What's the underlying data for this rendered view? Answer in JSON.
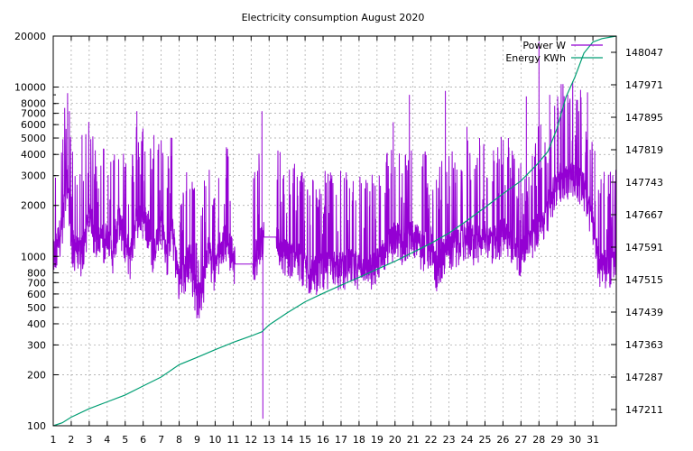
{
  "chart_data": {
    "type": "line",
    "title": "Electricity consumption August 2020",
    "xlabel": "",
    "ylabel": "",
    "y2label": "",
    "grid": true,
    "legend_position": "top-right",
    "x_ticks": [
      "1",
      "2",
      "3",
      "4",
      "5",
      "6",
      "7",
      "8",
      "9",
      "10",
      "11",
      "12",
      "13",
      "14",
      "15",
      "16",
      "17",
      "18",
      "19",
      "20",
      "21",
      "22",
      "23",
      "24",
      "25",
      "26",
      "27",
      "28",
      "29",
      "30",
      "31"
    ],
    "xlim": [
      1,
      32.3
    ],
    "y_scale": "log",
    "ylim": [
      100,
      20000
    ],
    "y_ticks": [
      100,
      200,
      300,
      400,
      500,
      600,
      700,
      800,
      1000,
      2000,
      3000,
      4000,
      5000,
      6000,
      7000,
      8000,
      10000,
      20000
    ],
    "y2lim": [
      147173,
      148085
    ],
    "y2_ticks": [
      147211,
      147287,
      147363,
      147439,
      147515,
      147591,
      147667,
      147743,
      147819,
      147895,
      147971,
      148047
    ],
    "colors": {
      "power": "#9400d3",
      "energy": "#009e73",
      "grid": "#a0a0a0"
    },
    "series": [
      {
        "name": "Power W",
        "axis": "y",
        "profile": [
          [
            1.0,
            1000
          ],
          [
            1.5,
            1500
          ],
          [
            1.8,
            3000
          ],
          [
            2.0,
            1200
          ],
          [
            2.5,
            1000
          ],
          [
            3.0,
            1700
          ],
          [
            3.5,
            1200
          ],
          [
            4.0,
            1300
          ],
          [
            4.3,
            1000
          ],
          [
            4.6,
            1700
          ],
          [
            5.0,
            1200
          ],
          [
            5.3,
            1000
          ],
          [
            5.6,
            1600
          ],
          [
            6.0,
            1700
          ],
          [
            6.3,
            1500
          ],
          [
            6.6,
            1000
          ],
          [
            7.0,
            1600
          ],
          [
            7.3,
            1000
          ],
          [
            7.6,
            1500
          ],
          [
            8.0,
            700
          ],
          [
            8.3,
            800
          ],
          [
            8.6,
            1000
          ],
          [
            9.0,
            550
          ],
          [
            9.3,
            650
          ],
          [
            9.6,
            1100
          ],
          [
            10.0,
            800
          ],
          [
            10.3,
            1200
          ],
          [
            10.6,
            1300
          ],
          [
            11.0,
            1000
          ],
          [
            11.1,
            900
          ],
          [
            12.1,
            900
          ],
          [
            12.5,
            1200
          ],
          [
            12.6,
            1300
          ],
          [
            13.4,
            1300
          ],
          [
            13.6,
            1100
          ],
          [
            14.0,
            1000
          ],
          [
            14.5,
            1000
          ],
          [
            15.0,
            850
          ],
          [
            15.5,
            800
          ],
          [
            16.0,
            850
          ],
          [
            16.5,
            900
          ],
          [
            17.0,
            850
          ],
          [
            17.5,
            900
          ],
          [
            18.0,
            850
          ],
          [
            18.5,
            800
          ],
          [
            19.0,
            900
          ],
          [
            19.5,
            1100
          ],
          [
            20.0,
            1300
          ],
          [
            20.5,
            1200
          ],
          [
            21.0,
            1400
          ],
          [
            21.5,
            1100
          ],
          [
            22.0,
            1200
          ],
          [
            22.3,
            800
          ],
          [
            22.6,
            1000
          ],
          [
            23.0,
            1100
          ],
          [
            23.5,
            1200
          ],
          [
            24.0,
            1300
          ],
          [
            24.5,
            1200
          ],
          [
            25.0,
            1300
          ],
          [
            25.5,
            1200
          ],
          [
            26.0,
            1400
          ],
          [
            26.5,
            1200
          ],
          [
            27.0,
            1000
          ],
          [
            27.5,
            1200
          ],
          [
            28.0,
            1600
          ],
          [
            28.5,
            1900
          ],
          [
            29.0,
            2800
          ],
          [
            29.5,
            3000
          ],
          [
            30.0,
            3000
          ],
          [
            30.5,
            2500
          ],
          [
            31.0,
            1500
          ],
          [
            31.3,
            900
          ],
          [
            31.6,
            900
          ],
          [
            32.0,
            900
          ],
          [
            32.3,
            850
          ]
        ],
        "spikes": [
          [
            1.8,
            9200
          ],
          [
            1.9,
            7200
          ],
          [
            2.6,
            5200
          ],
          [
            3.4,
            3400
          ],
          [
            4.4,
            4000
          ],
          [
            5.4,
            4000
          ],
          [
            5.65,
            7200
          ],
          [
            6.6,
            5200
          ],
          [
            7.6,
            5000
          ],
          [
            8.6,
            2500
          ],
          [
            9.4,
            2800
          ],
          [
            10.2,
            2900
          ],
          [
            10.6,
            2900
          ],
          [
            12.6,
            7200
          ],
          [
            12.65,
            110
          ],
          [
            19.9,
            6200
          ],
          [
            20.8,
            9000
          ],
          [
            22.8,
            9500
          ],
          [
            24.0,
            5800
          ],
          [
            24.7,
            5000
          ],
          [
            26.3,
            5000
          ],
          [
            27.3,
            8800
          ],
          [
            28.0,
            18500
          ],
          [
            28.6,
            9000
          ],
          [
            29.2,
            7200
          ],
          [
            29.6,
            9000
          ],
          [
            30.7,
            9300
          ],
          [
            31.1,
            4200
          ],
          [
            31.6,
            2700
          ]
        ]
      },
      {
        "name": "Energy KWh",
        "axis": "y2",
        "points": [
          [
            1.0,
            147173
          ],
          [
            1.5,
            147180
          ],
          [
            2.0,
            147193
          ],
          [
            3.0,
            147213
          ],
          [
            4.0,
            147229
          ],
          [
            5.0,
            147245
          ],
          [
            6.0,
            147266
          ],
          [
            7.0,
            147287
          ],
          [
            8.0,
            147316
          ],
          [
            9.0,
            147333
          ],
          [
            10.0,
            147351
          ],
          [
            11.0,
            147368
          ],
          [
            12.0,
            147383
          ],
          [
            12.6,
            147393
          ],
          [
            13.0,
            147409
          ],
          [
            14.0,
            147437
          ],
          [
            15.0,
            147463
          ],
          [
            16.0,
            147483
          ],
          [
            17.0,
            147502
          ],
          [
            18.0,
            147520
          ],
          [
            19.0,
            147539
          ],
          [
            20.0,
            147558
          ],
          [
            21.0,
            147579
          ],
          [
            22.0,
            147600
          ],
          [
            23.0,
            147624
          ],
          [
            24.0,
            147653
          ],
          [
            25.0,
            147684
          ],
          [
            26.0,
            147716
          ],
          [
            27.0,
            147746
          ],
          [
            27.9,
            147785
          ],
          [
            28.5,
            147815
          ],
          [
            29.0,
            147868
          ],
          [
            29.5,
            147942
          ],
          [
            30.0,
            147989
          ],
          [
            30.5,
            148045
          ],
          [
            31.0,
            148071
          ],
          [
            31.5,
            148079
          ],
          [
            32.3,
            148085
          ]
        ]
      }
    ]
  }
}
